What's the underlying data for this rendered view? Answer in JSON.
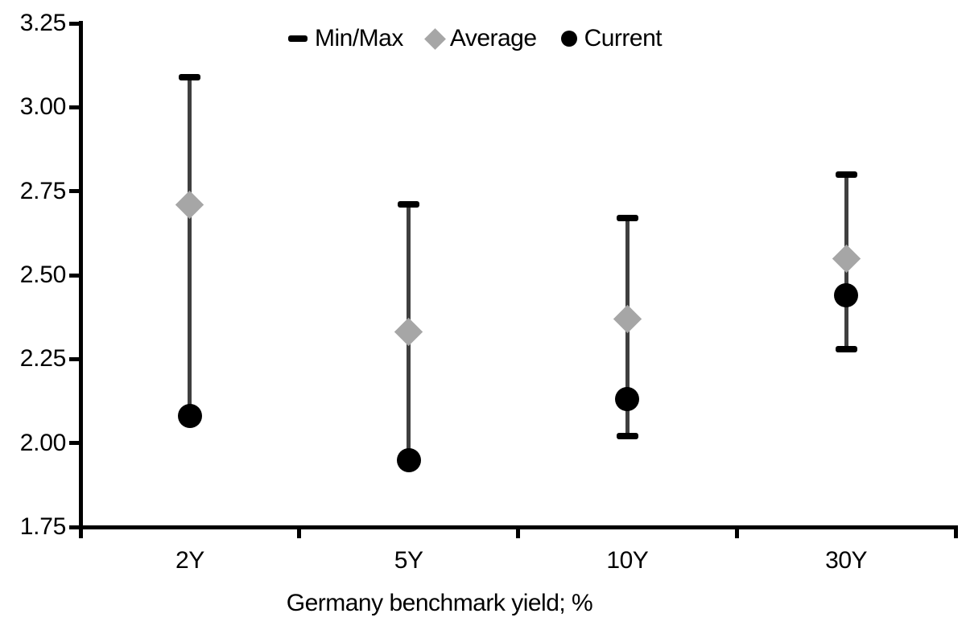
{
  "chart_data": {
    "type": "error-bar-range",
    "title": "",
    "xlabel": "Germany benchmark yield; %",
    "ylabel": "",
    "categories": [
      "2Y",
      "5Y",
      "10Y",
      "30Y"
    ],
    "ylim": [
      1.75,
      3.25
    ],
    "ytick_labels": [
      "3.25",
      "3.00",
      "2.75",
      "2.50",
      "2.25",
      "2.00",
      "1.75"
    ],
    "ytick_values": [
      3.25,
      3.0,
      2.75,
      2.5,
      2.25,
      2.0,
      1.75
    ],
    "grid": "off",
    "legend_position": "top-center",
    "legend": [
      {
        "label": "Min/Max",
        "marker": "dash",
        "color": "#000000"
      },
      {
        "label": "Average",
        "marker": "diamond",
        "color": "#a6a6a6"
      },
      {
        "label": "Current",
        "marker": "circle",
        "color": "#000000"
      }
    ],
    "series": [
      {
        "category": "2Y",
        "max": 3.09,
        "min": 2.08,
        "average": 2.71,
        "current": 2.08
      },
      {
        "category": "5Y",
        "max": 2.71,
        "min": 1.95,
        "average": 2.33,
        "current": 1.95
      },
      {
        "category": "10Y",
        "max": 2.67,
        "min": 2.02,
        "average": 2.37,
        "current": 2.13
      },
      {
        "category": "30Y",
        "max": 2.8,
        "min": 2.28,
        "average": 2.55,
        "current": 2.44
      }
    ],
    "colors": {
      "range_line": "#3f3f3f",
      "cap": "#000000",
      "average_marker": "#a6a6a6",
      "current_marker": "#000000",
      "axis": "#000000",
      "text": "#000000",
      "background": "#ffffff"
    }
  }
}
